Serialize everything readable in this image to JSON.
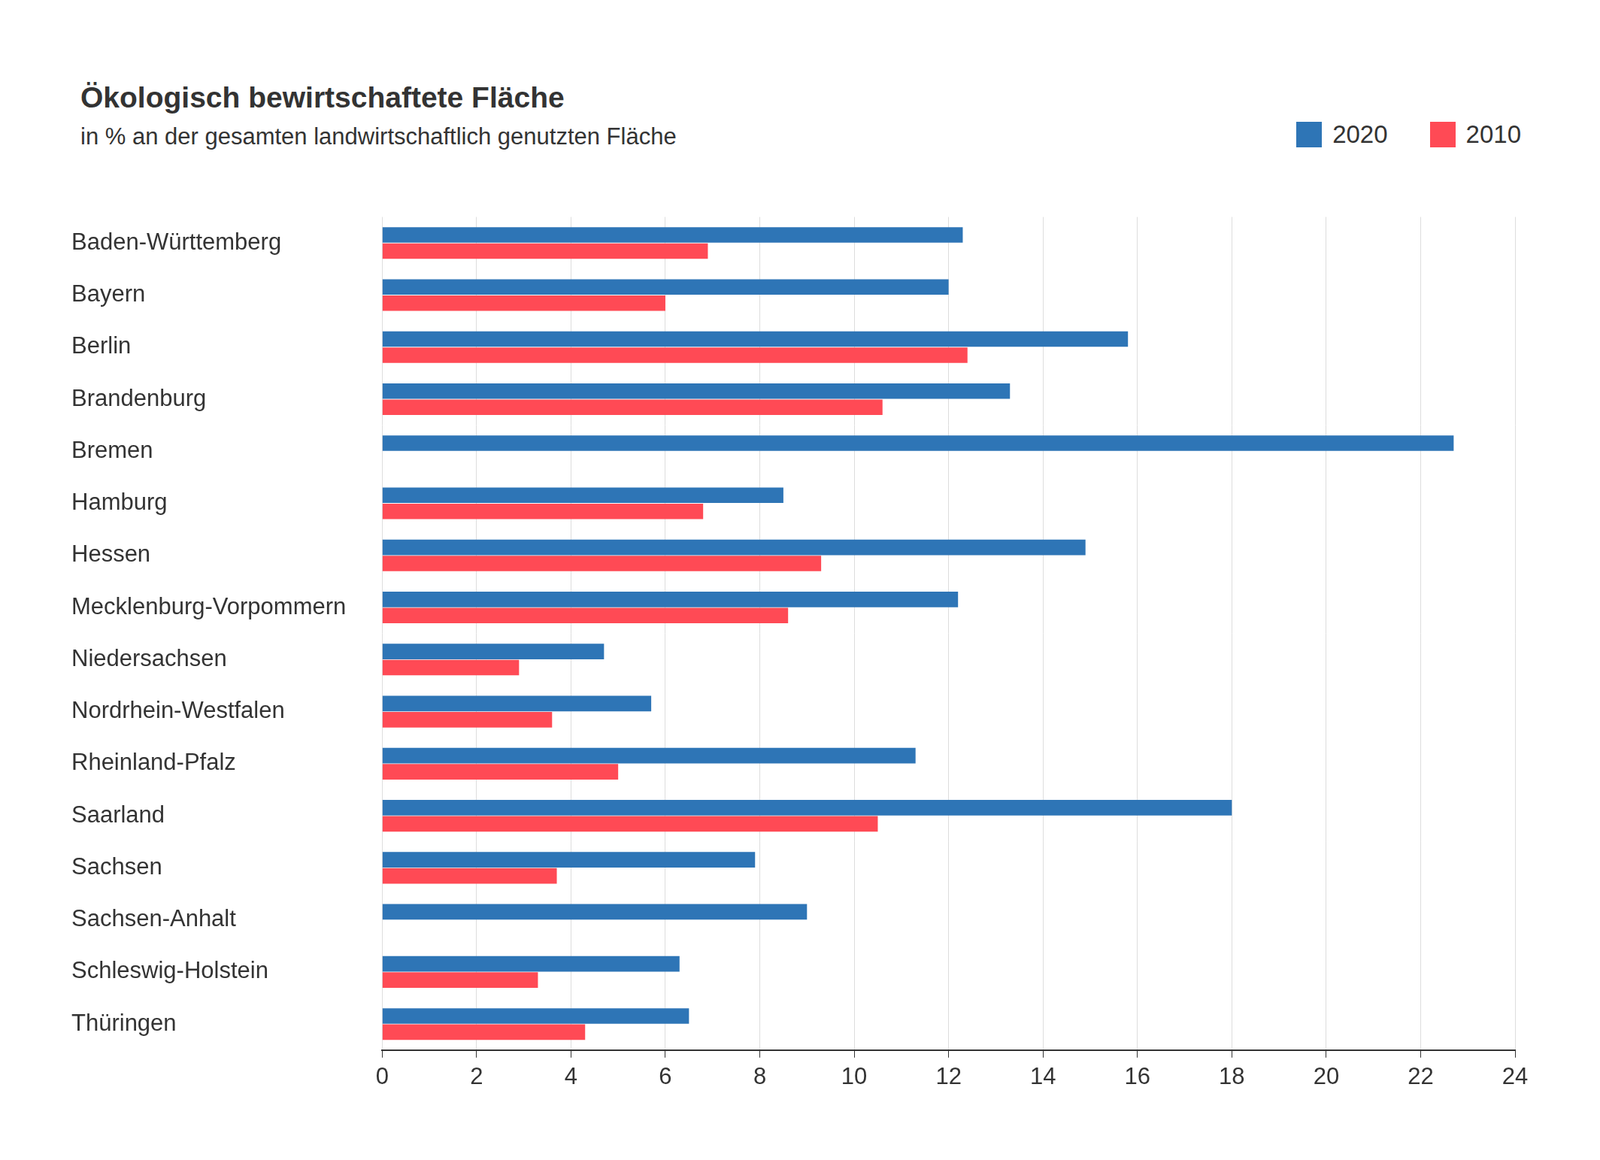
{
  "chart_data": {
    "type": "bar",
    "orientation": "horizontal",
    "title": "Ökologisch bewirtschaftete Fläche",
    "subtitle": "in % an der gesamten landwirtschaftlich genutzten Fläche",
    "categories": [
      "Baden-Württemberg",
      "Bayern",
      "Berlin",
      "Brandenburg",
      "Bremen",
      "Hamburg",
      "Hessen",
      "Mecklenburg-Vorpommern",
      "Niedersachsen",
      "Nordrhein-Westfalen",
      "Rheinland-Pfalz",
      "Saarland",
      "Sachsen",
      "Sachsen-Anhalt",
      "Schleswig-Holstein",
      "Thüringen"
    ],
    "series": [
      {
        "name": "2020",
        "color": "#2e75b6",
        "values": [
          12.3,
          12.0,
          15.8,
          13.3,
          22.7,
          8.5,
          14.9,
          12.2,
          4.7,
          5.7,
          11.3,
          18.0,
          7.9,
          9.0,
          6.3,
          6.5
        ]
      },
      {
        "name": "2010",
        "color": "#ff4a55",
        "values": [
          6.9,
          6.0,
          12.4,
          10.6,
          null,
          6.8,
          9.3,
          8.6,
          2.9,
          3.6,
          5.0,
          10.5,
          3.7,
          null,
          3.3,
          4.3
        ]
      }
    ],
    "xlim": [
      0,
      24
    ],
    "xticks": [
      0,
      2,
      4,
      6,
      8,
      10,
      12,
      14,
      16,
      18,
      20,
      22,
      24
    ],
    "grid": true,
    "legend": "top-right"
  }
}
